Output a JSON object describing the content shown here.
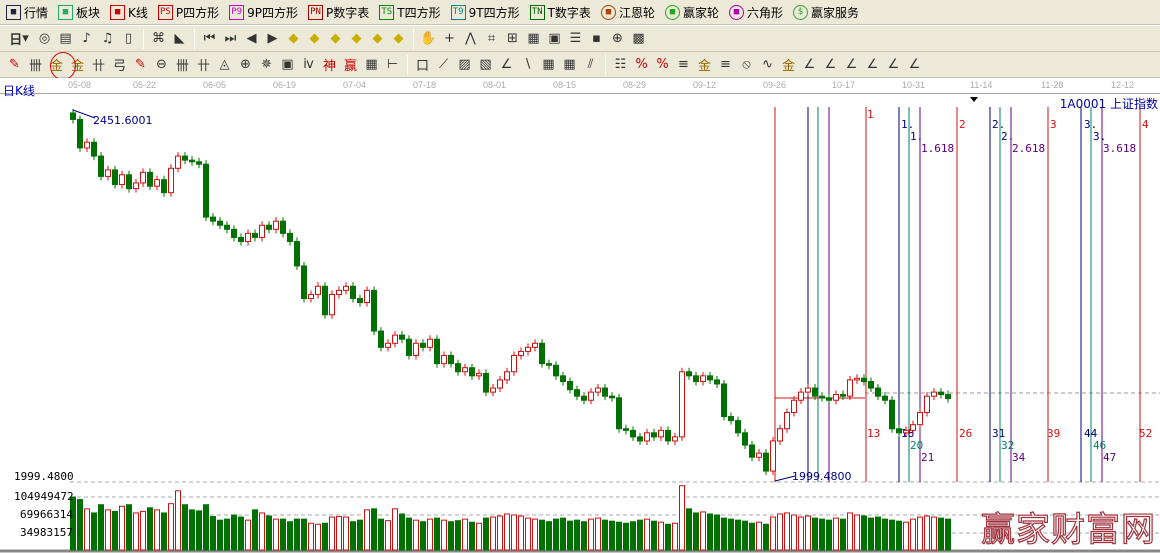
{
  "menu": [
    {
      "label": "行情",
      "icon": "grid-icon"
    },
    {
      "label": "板块",
      "icon": "blocks-icon"
    },
    {
      "label": "K线",
      "icon": "kline-icon"
    },
    {
      "label": "P四方形",
      "icon": "ps-icon",
      "tag": "PS"
    },
    {
      "label": "9P四方形",
      "icon": "p9-icon",
      "tag": "P9"
    },
    {
      "label": "P数字表",
      "icon": "pn-icon",
      "tag": "PN"
    },
    {
      "label": "T四方形",
      "icon": "ts-icon",
      "tag": "TS"
    },
    {
      "label": "9T四方形",
      "icon": "t9-icon",
      "tag": "T9"
    },
    {
      "label": "T数字表",
      "icon": "tn-icon",
      "tag": "TN"
    },
    {
      "label": "江恩轮",
      "icon": "gann-wheel-icon"
    },
    {
      "label": "赢家轮",
      "icon": "winner-wheel-icon"
    },
    {
      "label": "六角形",
      "icon": "hexagon-icon"
    },
    {
      "label": "赢家服务",
      "icon": "dollar-icon"
    }
  ],
  "toolbar2": {
    "period": "日",
    "tools": [
      "◎",
      "▤",
      "♪",
      "♫",
      "▯",
      "⌘",
      "◣",
      "⏮",
      "⏭",
      "◀",
      "▶",
      "◆",
      "◆",
      "◆",
      "◆",
      "◆",
      "◆",
      "✋",
      "+",
      "⋀",
      "⌗",
      "⊞",
      "▦",
      "▣",
      "☰",
      "▪",
      "⊕",
      "▩"
    ]
  },
  "toolbar3": {
    "tools": [
      "✎",
      "卌",
      "金",
      "金",
      "卄",
      "弓",
      "✎",
      "⊖",
      "卌",
      "卄",
      "◬",
      "⊕",
      "✵",
      "▣",
      "ⅳ",
      "神",
      "赢",
      "▦",
      "⊢",
      "口",
      "⟋",
      "▨",
      "▧",
      "∠",
      "∖",
      "▦",
      "▦",
      "⫽",
      "☷",
      "%",
      "%",
      "≡",
      "金",
      "≡",
      "⦸",
      "∿",
      "金",
      "∠",
      "∠",
      "∠",
      "∠",
      "∠",
      "∠"
    ]
  },
  "axis": {
    "dates": [
      "05-08",
      "05-22",
      "06-05",
      "06-19",
      "07-04",
      "07-18",
      "08-01",
      "08-15",
      "08-29",
      "09-12",
      "09-26",
      "10-17",
      "10-31",
      "11-14",
      "11-28",
      "12-12"
    ]
  },
  "chart": {
    "period_label": "日K线",
    "symbol": "1A0001  上证指数",
    "high_label": "2451.6001",
    "low_label": "1999.4800",
    "low_axis_label": "1999.4800",
    "volume_ticks": [
      "104949472",
      "69966314",
      "34983157"
    ],
    "time_lines_top": [
      "1",
      "1.",
      "1.",
      "1.618",
      "2",
      "2.",
      "2.",
      "2.618",
      "3",
      "3.",
      "3.",
      "3.618",
      "4"
    ],
    "time_lines_bottom": [
      "13",
      "18",
      "20",
      "21",
      "26",
      "31",
      "32",
      "34",
      "39",
      "44",
      "46",
      "47",
      "52"
    ]
  },
  "colors": {
    "up": "#d01010",
    "down": "#007000",
    "blue_line": "#000080",
    "green_line": "#008060",
    "purple_line": "#600080",
    "red_line": "#d01010"
  },
  "watermark": "赢家财富网",
  "chart_data": {
    "type": "candlestick",
    "y_range": [
      1999.48,
      2451.6001
    ],
    "close": [
      2440,
      2405,
      2412,
      2395,
      2370,
      2378,
      2360,
      2372,
      2355,
      2362,
      2375,
      2358,
      2366,
      2350,
      2380,
      2395,
      2390,
      2388,
      2385,
      2320,
      2315,
      2310,
      2305,
      2295,
      2290,
      2300,
      2295,
      2310,
      2305,
      2315,
      2300,
      2290,
      2260,
      2220,
      2225,
      2235,
      2200,
      2225,
      2230,
      2235,
      2220,
      2215,
      2230,
      2180,
      2160,
      2165,
      2175,
      2170,
      2150,
      2165,
      2160,
      2170,
      2140,
      2150,
      2140,
      2130,
      2135,
      2125,
      2128,
      2105,
      2110,
      2120,
      2130,
      2150,
      2155,
      2160,
      2165,
      2140,
      2138,
      2125,
      2118,
      2108,
      2100,
      2095,
      2105,
      2110,
      2100,
      2098,
      2060,
      2058,
      2050,
      2045,
      2055,
      2050,
      2058,
      2045,
      2050,
      2130,
      2125,
      2118,
      2125,
      2120,
      2115,
      2075,
      2070,
      2055,
      2040,
      2025,
      2030,
      2008,
      2045,
      2060,
      2080,
      2095,
      2105,
      2110,
      2100,
      2098,
      2095,
      2102,
      2100,
      2120,
      2122,
      2118,
      2110,
      2100,
      2095,
      2060,
      2055,
      2058,
      2065,
      2080,
      2100,
      2105,
      2102,
      2097
    ],
    "volume": [
      103,
      98,
      80,
      72,
      88,
      78,
      75,
      85,
      88,
      72,
      75,
      82,
      78,
      72,
      90,
      115,
      88,
      78,
      76,
      88,
      65,
      58,
      60,
      68,
      64,
      58,
      78,
      72,
      66,
      60,
      60,
      55,
      60,
      60,
      52,
      50,
      52,
      64,
      65,
      64,
      55,
      58,
      78,
      80,
      60,
      57,
      80,
      70,
      62,
      58,
      55,
      60,
      62,
      58,
      55,
      57,
      60,
      54,
      52,
      62,
      64,
      66,
      70,
      68,
      66,
      62,
      60,
      58,
      55,
      60,
      62,
      56,
      58,
      55,
      60,
      62,
      58,
      56,
      54,
      52,
      55,
      58,
      60,
      56,
      54,
      50,
      52,
      125,
      80,
      72,
      74,
      70,
      68,
      62,
      60,
      58,
      56,
      52,
      54,
      50,
      64,
      70,
      72,
      68,
      64,
      66,
      62,
      60,
      58,
      62,
      60,
      72,
      68,
      66,
      62,
      64,
      60,
      58,
      56,
      54,
      60,
      64,
      66,
      64,
      62,
      60
    ]
  }
}
